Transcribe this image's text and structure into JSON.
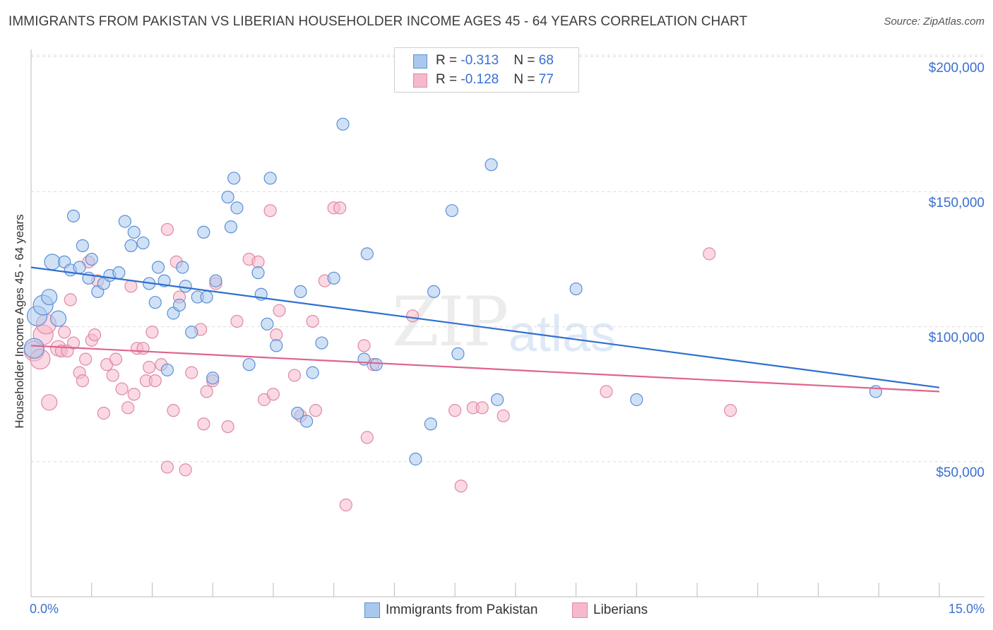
{
  "header": {
    "title": "IMMIGRANTS FROM PAKISTAN VS LIBERIAN HOUSEHOLDER INCOME AGES 45 - 64 YEARS CORRELATION CHART",
    "source": "Source: ZipAtlas.com"
  },
  "watermark": {
    "zip": "ZIP",
    "atlas": "atlas"
  },
  "legend": {
    "pakistan": {
      "r_label": "R = ",
      "r_value": "-0.313",
      "n_label": "N = ",
      "n_value": "68"
    },
    "liberians": {
      "r_label": "R = ",
      "r_value": "-0.128",
      "n_label": "N = ",
      "n_value": "77"
    }
  },
  "chart_data": {
    "type": "scatter",
    "title": "IMMIGRANTS FROM PAKISTAN VS LIBERIAN HOUSEHOLDER INCOME AGES 45 - 64 YEARS CORRELATION CHART",
    "xlabel": "",
    "ylabel": "Householder Income Ages 45 - 64 years",
    "xlim": [
      0,
      15
    ],
    "ylim": [
      0,
      210000
    ],
    "x_tick_labels": [
      "0.0%",
      "15.0%"
    ],
    "y_ticks": [
      50000,
      100000,
      150000,
      200000
    ],
    "y_tick_labels": [
      "$50,000",
      "$100,000",
      "$150,000",
      "$200,000"
    ],
    "grid": true,
    "legend_position": "top-center",
    "colors": {
      "pakistan_fill": "#aac8ee",
      "pakistan_stroke": "#5b8fd6",
      "pakistan_line": "#2f6fd0",
      "liberians_fill": "#f6b9cc",
      "liberians_stroke": "#e088a6",
      "liberians_line": "#e0638d",
      "tick_text": "#3a6fd0"
    },
    "series": [
      {
        "name": "Immigrants from Pakistan",
        "trend": {
          "x": [
            0,
            15
          ],
          "y": [
            122000,
            77500
          ]
        },
        "points": [
          [
            0.05,
            92000
          ],
          [
            0.1,
            104000
          ],
          [
            0.2,
            108000
          ],
          [
            0.3,
            111000
          ],
          [
            0.35,
            124000
          ],
          [
            0.45,
            103000
          ],
          [
            0.55,
            124000
          ],
          [
            0.65,
            121000
          ],
          [
            0.7,
            141000
          ],
          [
            0.8,
            122000
          ],
          [
            0.85,
            130000
          ],
          [
            0.95,
            118000
          ],
          [
            1.0,
            125000
          ],
          [
            1.1,
            113000
          ],
          [
            1.2,
            116000
          ],
          [
            1.3,
            119000
          ],
          [
            1.45,
            120000
          ],
          [
            1.55,
            139000
          ],
          [
            1.65,
            130000
          ],
          [
            1.7,
            135000
          ],
          [
            1.85,
            131000
          ],
          [
            1.95,
            116000
          ],
          [
            2.05,
            109000
          ],
          [
            2.1,
            122000
          ],
          [
            2.2,
            117000
          ],
          [
            2.25,
            84000
          ],
          [
            2.35,
            105000
          ],
          [
            2.45,
            108000
          ],
          [
            2.5,
            122000
          ],
          [
            2.55,
            115000
          ],
          [
            2.65,
            98000
          ],
          [
            2.75,
            111000
          ],
          [
            2.85,
            135000
          ],
          [
            2.9,
            111000
          ],
          [
            3.0,
            81000
          ],
          [
            3.05,
            117000
          ],
          [
            3.25,
            148000
          ],
          [
            3.3,
            137000
          ],
          [
            3.35,
            155000
          ],
          [
            3.4,
            144000
          ],
          [
            3.6,
            86000
          ],
          [
            3.75,
            120000
          ],
          [
            3.8,
            112000
          ],
          [
            3.9,
            101000
          ],
          [
            3.95,
            155000
          ],
          [
            4.05,
            93000
          ],
          [
            4.4,
            68000
          ],
          [
            4.45,
            113000
          ],
          [
            4.55,
            65000
          ],
          [
            4.65,
            83000
          ],
          [
            4.8,
            94000
          ],
          [
            5.0,
            118000
          ],
          [
            5.15,
            175000
          ],
          [
            5.5,
            88000
          ],
          [
            5.55,
            127000
          ],
          [
            5.7,
            86000
          ],
          [
            6.35,
            51000
          ],
          [
            6.6,
            64000
          ],
          [
            6.65,
            113000
          ],
          [
            6.95,
            143000
          ],
          [
            7.05,
            90000
          ],
          [
            7.6,
            160000
          ],
          [
            7.7,
            73000
          ],
          [
            9.0,
            114000
          ],
          [
            10.0,
            73000
          ],
          [
            13.95,
            76000
          ]
        ]
      },
      {
        "name": "Liberians",
        "trend": {
          "x": [
            0,
            15
          ],
          "y": [
            93000,
            76000
          ]
        },
        "points": [
          [
            0.05,
            91000
          ],
          [
            0.15,
            88000
          ],
          [
            0.2,
            97000
          ],
          [
            0.25,
            101000
          ],
          [
            0.3,
            72000
          ],
          [
            0.45,
            92000
          ],
          [
            0.5,
            91000
          ],
          [
            0.55,
            98000
          ],
          [
            0.6,
            91000
          ],
          [
            0.65,
            110000
          ],
          [
            0.7,
            94000
          ],
          [
            0.8,
            83000
          ],
          [
            0.85,
            80000
          ],
          [
            0.9,
            88000
          ],
          [
            0.95,
            124000
          ],
          [
            1.0,
            95000
          ],
          [
            1.05,
            97000
          ],
          [
            1.1,
            117000
          ],
          [
            1.2,
            68000
          ],
          [
            1.25,
            86000
          ],
          [
            1.35,
            82000
          ],
          [
            1.4,
            88000
          ],
          [
            1.5,
            77000
          ],
          [
            1.6,
            70000
          ],
          [
            1.65,
            115000
          ],
          [
            1.7,
            75000
          ],
          [
            1.75,
            92000
          ],
          [
            1.85,
            92000
          ],
          [
            1.9,
            80000
          ],
          [
            1.95,
            85000
          ],
          [
            2.0,
            98000
          ],
          [
            2.05,
            80000
          ],
          [
            2.15,
            86000
          ],
          [
            2.25,
            48000
          ],
          [
            2.25,
            136000
          ],
          [
            2.35,
            69000
          ],
          [
            2.4,
            124000
          ],
          [
            2.45,
            111000
          ],
          [
            2.55,
            47000
          ],
          [
            2.65,
            83000
          ],
          [
            2.8,
            99000
          ],
          [
            2.85,
            64000
          ],
          [
            2.9,
            76000
          ],
          [
            3.0,
            80000
          ],
          [
            3.05,
            116000
          ],
          [
            3.25,
            63000
          ],
          [
            3.4,
            102000
          ],
          [
            3.6,
            125000
          ],
          [
            3.75,
            124000
          ],
          [
            3.85,
            73000
          ],
          [
            3.95,
            143000
          ],
          [
            4.0,
            75000
          ],
          [
            4.05,
            97000
          ],
          [
            4.1,
            106000
          ],
          [
            4.35,
            82000
          ],
          [
            4.45,
            67000
          ],
          [
            4.65,
            102000
          ],
          [
            4.7,
            69000
          ],
          [
            4.85,
            117000
          ],
          [
            5.0,
            144000
          ],
          [
            5.1,
            144000
          ],
          [
            5.2,
            34000
          ],
          [
            5.5,
            93000
          ],
          [
            5.55,
            59000
          ],
          [
            5.65,
            86000
          ],
          [
            6.3,
            104000
          ],
          [
            7.0,
            69000
          ],
          [
            7.1,
            41000
          ],
          [
            7.3,
            70000
          ],
          [
            7.45,
            70000
          ],
          [
            7.8,
            67000
          ],
          [
            9.5,
            76000
          ],
          [
            11.2,
            127000
          ],
          [
            11.55,
            69000
          ]
        ]
      }
    ]
  },
  "bottom_legend": {
    "pakistan_label": "Immigrants from Pakistan",
    "liberians_label": "Liberians"
  }
}
